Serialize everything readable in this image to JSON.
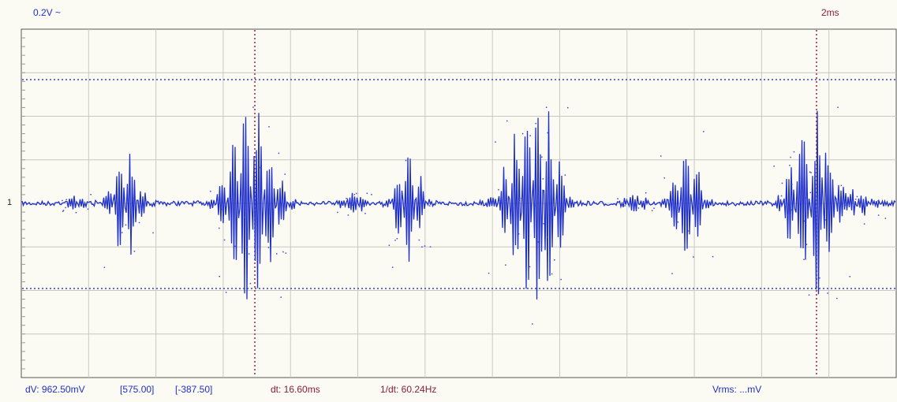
{
  "header": {
    "vertical_scale": "0.2V ~",
    "timebase": "2ms"
  },
  "channel_marker": "1",
  "colors": {
    "background": "#fbfbf3",
    "grid": "#c8c8c0",
    "trace": "#1f2fc9",
    "voltage_cursor": "#3040d0",
    "time_cursor": "#a0204a",
    "text_blue": "#1f2fc9",
    "text_maroon": "#8a1d3a"
  },
  "footer": {
    "dv": "dV: 962.50mV",
    "dv_cursor_a": "[575.00]",
    "dv_cursor_b": "[-387.50]",
    "dt": "dt: 16.60ms",
    "inv_dt": "1/dt: 60.24Hz",
    "vrms": "Vrms: ...mV"
  }
}
